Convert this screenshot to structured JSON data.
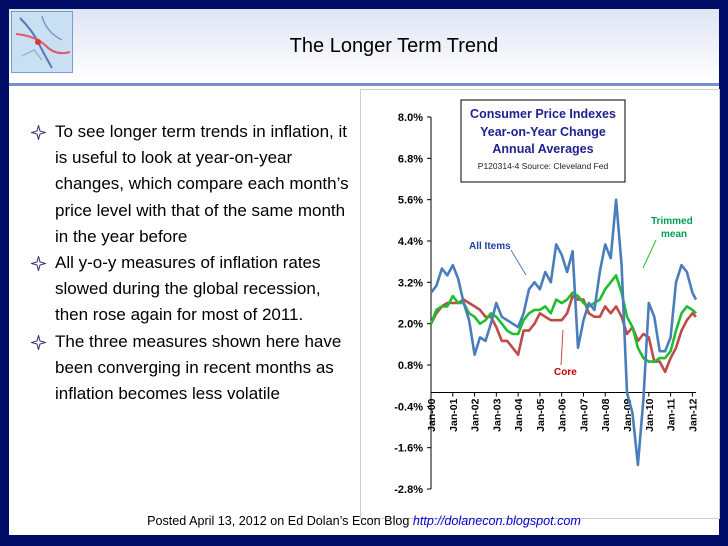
{
  "slide": {
    "title": "The Longer Term Trend",
    "bullets": [
      "To see longer term trends in inflation, it is useful to look at year-on-year changes, which compare each month’s price level with that of the same month in the year before",
      "All y-o-y measures of inflation rates slowed during the global recession, then rose again for most of 2011.",
      "The three measures shown here have been converging in recent months as inflation becomes less volatile"
    ],
    "footer": {
      "text": "Posted April 13, 2012 on Ed Dolan’s Econ Blog",
      "link": "http://dolanecon.blogspot.com"
    }
  },
  "chart_data": {
    "type": "line",
    "title": "Consumer Price Indexes",
    "subtitle_lines": [
      "Year-on-Year Change",
      "Annual Averages"
    ],
    "source_note": "P120314-4 Source: Cleveland Fed",
    "y_range": [
      -2.8,
      8.0
    ],
    "y_ticks": [
      8.0,
      6.8,
      5.6,
      4.4,
      3.2,
      2.0,
      0.8,
      -0.4,
      -1.6,
      -2.8
    ],
    "y_tick_labels": [
      "8.0%",
      "6.8%",
      "5.6%",
      "4.4%",
      "3.2%",
      "2.0%",
      "0.8%",
      "-0.4%",
      "-1.6%",
      "-2.8%"
    ],
    "x_tick_labels": [
      "Jan-00",
      "Jan-01",
      "Jan-02",
      "Jan-03",
      "Jan-04",
      "Jan-05",
      "Jan-06",
      "Jan-07",
      "Jan-08",
      "Jan-09",
      "Jan-10",
      "Jan-11",
      "Jan-12"
    ],
    "grid": false,
    "series": [
      {
        "name": "All Items",
        "color": "#4a7ebb",
        "x": [
          "Jan-00",
          "Apr-00",
          "Jul-00",
          "Oct-00",
          "Jan-01",
          "Apr-01",
          "Jul-01",
          "Oct-01",
          "Jan-02",
          "Apr-02",
          "Jul-02",
          "Oct-02",
          "Jan-03",
          "Apr-03",
          "Jul-03",
          "Oct-03",
          "Jan-04",
          "Apr-04",
          "Jul-04",
          "Oct-04",
          "Jan-05",
          "Apr-05",
          "Jul-05",
          "Oct-05",
          "Jan-06",
          "Apr-06",
          "Jul-06",
          "Oct-06",
          "Jan-07",
          "Apr-07",
          "Jul-07",
          "Oct-07",
          "Jan-08",
          "Apr-08",
          "Jul-08",
          "Oct-08",
          "Jan-09",
          "Apr-09",
          "Jul-09",
          "Oct-09",
          "Jan-10",
          "Apr-10",
          "Jul-10",
          "Oct-10",
          "Jan-11",
          "Apr-11",
          "Jul-11",
          "Oct-11",
          "Jan-12",
          "Mar-12"
        ],
        "y": [
          2.9,
          3.1,
          3.6,
          3.4,
          3.7,
          3.3,
          2.6,
          2.1,
          1.1,
          1.6,
          1.5,
          2.0,
          2.6,
          2.2,
          2.1,
          2.0,
          1.9,
          2.3,
          3.0,
          3.2,
          3.0,
          3.5,
          3.2,
          4.3,
          4.0,
          3.5,
          4.1,
          1.3,
          2.1,
          2.6,
          2.4,
          3.5,
          4.3,
          3.9,
          5.6,
          3.7,
          0.0,
          -0.6,
          -2.1,
          -0.2,
          2.6,
          2.2,
          1.2,
          1.2,
          1.6,
          3.2,
          3.7,
          3.5,
          2.9,
          2.7
        ]
      },
      {
        "name": "Core",
        "color": "#be4b48",
        "x": [
          "Jan-00",
          "Apr-00",
          "Jul-00",
          "Oct-00",
          "Jan-01",
          "Apr-01",
          "Jul-01",
          "Oct-01",
          "Jan-02",
          "Apr-02",
          "Jul-02",
          "Oct-02",
          "Jan-03",
          "Apr-03",
          "Jul-03",
          "Oct-03",
          "Jan-04",
          "Apr-04",
          "Jul-04",
          "Oct-04",
          "Jan-05",
          "Apr-05",
          "Jul-05",
          "Oct-05",
          "Jan-06",
          "Apr-06",
          "Jul-06",
          "Oct-06",
          "Jan-07",
          "Apr-07",
          "Jul-07",
          "Oct-07",
          "Jan-08",
          "Apr-08",
          "Jul-08",
          "Oct-08",
          "Jan-09",
          "Apr-09",
          "Jul-09",
          "Oct-09",
          "Jan-10",
          "Apr-10",
          "Jul-10",
          "Oct-10",
          "Jan-11",
          "Apr-11",
          "Jul-11",
          "Oct-11",
          "Jan-12",
          "Mar-12"
        ],
        "y": [
          2.0,
          2.3,
          2.5,
          2.6,
          2.6,
          2.6,
          2.7,
          2.6,
          2.5,
          2.4,
          2.2,
          2.2,
          1.9,
          1.5,
          1.5,
          1.3,
          1.1,
          1.8,
          1.8,
          2.0,
          2.3,
          2.2,
          2.1,
          2.1,
          2.1,
          2.3,
          2.8,
          2.7,
          2.7,
          2.3,
          2.2,
          2.2,
          2.5,
          2.3,
          2.5,
          2.2,
          1.7,
          1.9,
          1.5,
          1.7,
          1.6,
          0.9,
          0.9,
          0.6,
          1.0,
          1.3,
          1.8,
          2.1,
          2.3,
          2.2
        ]
      },
      {
        "name": "Trimmed mean",
        "color": "#1dbf2e",
        "x": [
          "Jan-00",
          "Apr-00",
          "Jul-00",
          "Oct-00",
          "Jan-01",
          "Apr-01",
          "Jul-01",
          "Oct-01",
          "Jan-02",
          "Apr-02",
          "Jul-02",
          "Oct-02",
          "Jan-03",
          "Apr-03",
          "Jul-03",
          "Oct-03",
          "Jan-04",
          "Apr-04",
          "Jul-04",
          "Oct-04",
          "Jan-05",
          "Apr-05",
          "Jul-05",
          "Oct-05",
          "Jan-06",
          "Apr-06",
          "Jul-06",
          "Oct-06",
          "Jan-07",
          "Apr-07",
          "Jul-07",
          "Oct-07",
          "Jan-08",
          "Apr-08",
          "Jul-08",
          "Oct-08",
          "Jan-09",
          "Apr-09",
          "Jul-09",
          "Oct-09",
          "Jan-10",
          "Apr-10",
          "Jul-10",
          "Oct-10",
          "Jan-11",
          "Apr-11",
          "Jul-11",
          "Oct-11",
          "Jan-12",
          "Mar-12"
        ],
        "y": [
          2.0,
          2.4,
          2.5,
          2.5,
          2.8,
          2.6,
          2.6,
          2.3,
          2.2,
          2.0,
          2.1,
          2.3,
          2.2,
          2.0,
          1.8,
          1.7,
          1.7,
          2.1,
          2.3,
          2.4,
          2.4,
          2.5,
          2.3,
          2.7,
          2.6,
          2.7,
          2.9,
          2.8,
          2.6,
          2.5,
          2.6,
          2.7,
          3.0,
          3.2,
          3.4,
          2.9,
          2.2,
          1.9,
          1.3,
          1.0,
          0.9,
          0.9,
          1.0,
          1.0,
          1.2,
          1.8,
          2.3,
          2.5,
          2.4,
          2.3
        ]
      }
    ],
    "annotations": [
      {
        "text": "All Items",
        "color": "#1f3f9f"
      },
      {
        "text": "Core",
        "color": "#c00000"
      },
      {
        "text": "Trimmed",
        "color": "#00a050"
      },
      {
        "text": "mean",
        "color": "#00a050"
      }
    ]
  }
}
